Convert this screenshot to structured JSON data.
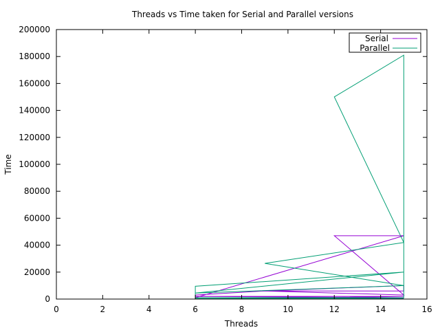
{
  "chart_data": {
    "type": "line",
    "title": "Threads vs Time taken for Serial and Parallel versions",
    "xlabel": "Threads",
    "ylabel": "Time",
    "xlim": [
      0,
      16
    ],
    "ylim": [
      0,
      200000
    ],
    "xticks": [
      0,
      2,
      4,
      6,
      8,
      10,
      12,
      14,
      16
    ],
    "yticks": [
      0,
      20000,
      40000,
      60000,
      80000,
      100000,
      120000,
      140000,
      160000,
      180000,
      200000
    ],
    "grid": false,
    "legend_position": "top-right",
    "series": [
      {
        "name": "Serial",
        "color": "#9400d3",
        "x": [
          0,
          6,
          6,
          9,
          15,
          15,
          9,
          15,
          12,
          15,
          6,
          15,
          6,
          15,
          9,
          15
        ],
        "y": [
          0,
          0,
          3000,
          6000,
          6000,
          10000,
          6000,
          3000,
          47000,
          47000,
          1000,
          1000,
          2000,
          2000,
          500,
          500
        ]
      },
      {
        "name": "Parallel",
        "color": "#009e73",
        "x": [
          0,
          6,
          6,
          15,
          6,
          15,
          9,
          15,
          12,
          15,
          15,
          6,
          15,
          6,
          15
        ],
        "y": [
          0,
          0,
          9500,
          20000,
          4500,
          10000,
          26500,
          42000,
          150000,
          181000,
          1000,
          1000,
          300,
          300,
          200
        ]
      }
    ]
  }
}
